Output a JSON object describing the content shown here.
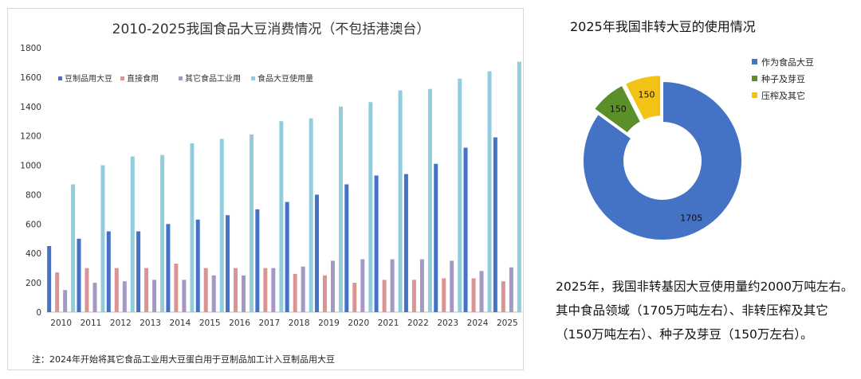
{
  "left_chart": {
    "note": "注：2024年开始将其它食品工业用大豆蛋白用于豆制品加工计入豆制品用大豆"
  },
  "right_chart": {},
  "summary": {
    "lines": [
      "2025年，我国非转基因大豆使用量约2000万吨左右。",
      "其中食品领域（1705万吨左右）、非转压榨及其它",
      "（150万吨左右）、种子及芽豆（150万左右）。"
    ]
  },
  "chart_data": [
    {
      "type": "bar",
      "title": "2010-2025我国食品大豆消费情况（不包括港澳台）",
      "xlabel": "",
      "ylabel": "",
      "ylim": [
        0,
        1800
      ],
      "yticks": [
        0,
        200,
        400,
        600,
        800,
        1000,
        1200,
        1400,
        1600,
        1800
      ],
      "grid": false,
      "legend_position": "top-left",
      "categories": [
        "2010",
        "2011",
        "2012",
        "2013",
        "2014",
        "2015",
        "2016",
        "2017",
        "2018",
        "2019",
        "2020",
        "2021",
        "2022",
        "2023",
        "2024",
        "2025"
      ],
      "series": [
        {
          "name": "豆制品用大豆",
          "color": "#4472C4",
          "values": [
            450,
            500,
            550,
            550,
            600,
            630,
            660,
            700,
            750,
            800,
            870,
            930,
            940,
            1010,
            1120,
            1190
          ]
        },
        {
          "name": "直接食用",
          "color": "#D99594",
          "values": [
            270,
            300,
            300,
            300,
            330,
            300,
            300,
            300,
            260,
            250,
            200,
            220,
            220,
            230,
            230,
            210
          ]
        },
        {
          "name": "其它食品工业用",
          "color": "#A499C2",
          "values": [
            150,
            200,
            210,
            220,
            220,
            250,
            250,
            300,
            310,
            350,
            360,
            360,
            360,
            350,
            280,
            305
          ]
        },
        {
          "name": "食品大豆使用量",
          "color": "#93CDDD",
          "values": [
            870,
            1000,
            1060,
            1070,
            1150,
            1180,
            1210,
            1300,
            1320,
            1400,
            1430,
            1510,
            1520,
            1590,
            1640,
            1705
          ]
        }
      ]
    },
    {
      "type": "pie",
      "title": "2025年我国非转大豆的使用情况",
      "donut": true,
      "legend_position": "right",
      "labels": [
        "作为食品大豆",
        "种子及芽豆",
        "压榨及其它"
      ],
      "values": [
        1705,
        150,
        150
      ],
      "colors": [
        "#4472C4",
        "#5A8F29",
        "#F2C314"
      ]
    }
  ]
}
